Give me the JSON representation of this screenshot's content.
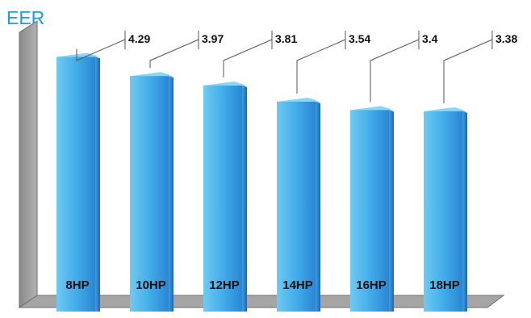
{
  "chart_data": {
    "type": "bar",
    "title": "EER",
    "xlabel": "",
    "ylabel": "",
    "categories": [
      "8HP",
      "10HP",
      "12HP",
      "14HP",
      "16HP",
      "18HP"
    ],
    "values": [
      4.29,
      3.97,
      3.81,
      3.54,
      3.4,
      3.38
    ],
    "ylim": [
      0,
      5
    ],
    "grid": false,
    "legend": "none",
    "style": "3d-columns with leader-line data labels",
    "colors": {
      "title": "#19a0d8",
      "bar_light": "#5fc3ee",
      "bar_dark": "#1f6fc0",
      "wall": "#9a9a9a",
      "floor": "#a5a5a5",
      "label_text": "#111111"
    }
  }
}
